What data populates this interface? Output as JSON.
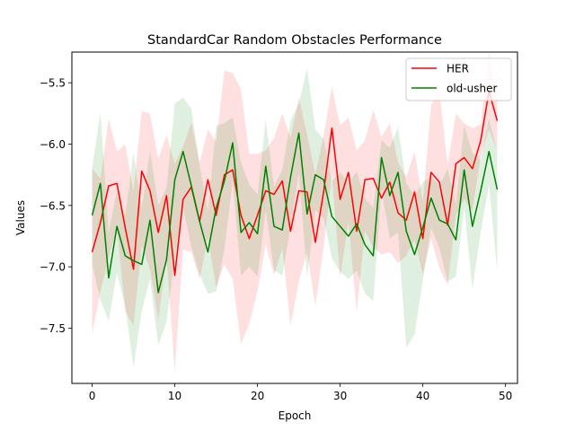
{
  "chart_data": {
    "type": "line",
    "title": "StandardCar Random Obstacles Performance",
    "xlabel": "Epoch",
    "ylabel": "Values",
    "xlim": [
      -2.45,
      51.45
    ],
    "ylim": [
      -7.95,
      -5.25
    ],
    "xticks": [
      0,
      10,
      20,
      30,
      40,
      50
    ],
    "xtick_labels": [
      "0",
      "10",
      "20",
      "30",
      "40",
      "50"
    ],
    "yticks": [
      -7.5,
      -7.0,
      -6.5,
      -6.0,
      -5.5
    ],
    "ytick_labels": [
      "−7.5",
      "−7.0",
      "−6.5",
      "−6.0",
      "−5.5"
    ],
    "grid": false,
    "legend_position": "top-right",
    "series": [
      {
        "name": "HER",
        "color": "#ff0000",
        "x": [
          0,
          1,
          2,
          3,
          4,
          5,
          6,
          7,
          8,
          9,
          10,
          11,
          12,
          13,
          14,
          15,
          16,
          17,
          18,
          19,
          20,
          21,
          22,
          23,
          24,
          25,
          26,
          27,
          28,
          29,
          30,
          31,
          32,
          33,
          34,
          35,
          36,
          37,
          38,
          39,
          40,
          41,
          42,
          43,
          44,
          45,
          46,
          47,
          48,
          49
        ],
        "values": [
          -6.88,
          -6.64,
          -6.34,
          -6.32,
          -6.68,
          -7.02,
          -6.22,
          -6.38,
          -6.72,
          -6.42,
          -7.07,
          -6.45,
          -6.35,
          -6.63,
          -6.29,
          -6.58,
          -6.25,
          -6.21,
          -6.58,
          -6.77,
          -6.58,
          -6.38,
          -6.41,
          -6.3,
          -6.71,
          -6.38,
          -6.39,
          -6.8,
          -6.39,
          -5.87,
          -6.45,
          -6.23,
          -6.71,
          -6.29,
          -6.28,
          -6.44,
          -6.31,
          -6.56,
          -6.62,
          -6.39,
          -6.77,
          -6.23,
          -6.31,
          -6.66,
          -6.16,
          -6.11,
          -6.2,
          -5.97,
          -5.57,
          -5.81
        ],
        "upper": [
          -6.2,
          -6.28,
          -5.79,
          -6.06,
          -6.0,
          -6.38,
          -5.73,
          -5.75,
          -6.12,
          -5.93,
          -6.16,
          -6.02,
          -5.82,
          -6.15,
          -5.88,
          -5.98,
          -5.4,
          -5.42,
          -5.55,
          -6.08,
          -6.08,
          -6.05,
          -5.95,
          -5.75,
          -5.95,
          -5.62,
          -5.92,
          -6.25,
          -5.93,
          -5.53,
          -5.85,
          -5.78,
          -6.05,
          -5.97,
          -5.72,
          -5.94,
          -5.83,
          -6.15,
          -6.27,
          -6.06,
          -6.47,
          -5.68,
          -5.57,
          -6.17,
          -5.75,
          -5.83,
          -5.87,
          -5.84,
          -5.26,
          -5.6
        ],
        "lower": [
          -7.55,
          -7.2,
          -6.93,
          -6.68,
          -7.36,
          -7.48,
          -6.83,
          -7.02,
          -7.43,
          -6.92,
          -7.85,
          -6.86,
          -6.88,
          -7.1,
          -6.76,
          -7.17,
          -6.98,
          -7.1,
          -7.63,
          -7.47,
          -7.2,
          -6.82,
          -7.07,
          -6.85,
          -7.48,
          -7.12,
          -6.88,
          -7.32,
          -6.84,
          -6.25,
          -7.09,
          -6.63,
          -7.37,
          -6.71,
          -6.84,
          -6.9,
          -6.88,
          -6.97,
          -6.91,
          -6.78,
          -7.06,
          -6.77,
          -7.01,
          -7.15,
          -6.58,
          -6.45,
          -6.54,
          -6.1,
          -5.88,
          -6.06
        ]
      },
      {
        "name": "old-usher",
        "color": "#008000",
        "x": [
          0,
          1,
          2,
          3,
          4,
          5,
          6,
          7,
          8,
          9,
          10,
          11,
          12,
          13,
          14,
          15,
          16,
          17,
          18,
          19,
          20,
          21,
          22,
          23,
          24,
          25,
          26,
          27,
          28,
          29,
          30,
          31,
          32,
          33,
          34,
          35,
          36,
          37,
          38,
          39,
          40,
          41,
          42,
          43,
          44,
          45,
          46,
          47,
          48,
          49
        ],
        "values": [
          -6.58,
          -6.32,
          -7.09,
          -6.67,
          -6.91,
          -6.95,
          -6.98,
          -6.62,
          -7.21,
          -6.94,
          -6.29,
          -6.06,
          -6.34,
          -6.63,
          -6.88,
          -6.52,
          -6.3,
          -5.99,
          -6.72,
          -6.64,
          -6.73,
          -6.18,
          -6.67,
          -6.7,
          -6.27,
          -5.91,
          -6.57,
          -6.25,
          -6.29,
          -6.59,
          -6.67,
          -6.75,
          -6.65,
          -6.82,
          -6.91,
          -6.11,
          -6.42,
          -6.23,
          -6.71,
          -6.9,
          -6.68,
          -6.44,
          -6.62,
          -6.65,
          -6.78,
          -6.21,
          -6.67,
          -6.38,
          -6.06,
          -6.37
        ],
        "upper": [
          -6.2,
          -5.74,
          -6.72,
          -6.38,
          -6.58,
          -6.07,
          -6.52,
          -6.05,
          -6.5,
          -6.35,
          -5.67,
          -5.62,
          -5.71,
          -6.17,
          -6.55,
          -5.85,
          -5.83,
          -5.78,
          -6.15,
          -6.33,
          -6.41,
          -5.8,
          -6.35,
          -6.21,
          -5.81,
          -5.67,
          -5.38,
          -5.88,
          -5.96,
          -6.3,
          -6.23,
          -6.32,
          -6.22,
          -6.44,
          -6.52,
          -5.97,
          -6.03,
          -5.86,
          -6.32,
          -6.42,
          -6.31,
          -6.26,
          -6.34,
          -6.2,
          -6.49,
          -5.85,
          -6.07,
          -6.13,
          -5.79,
          -6.07
        ],
        "lower": [
          -6.98,
          -7.27,
          -7.44,
          -7.05,
          -7.32,
          -7.82,
          -7.36,
          -7.1,
          -7.64,
          -7.45,
          -6.92,
          -6.52,
          -6.84,
          -7.06,
          -7.22,
          -7.2,
          -6.86,
          -6.3,
          -7.07,
          -7.0,
          -7.08,
          -6.54,
          -7.03,
          -7.07,
          -6.68,
          -6.24,
          -7.08,
          -6.54,
          -6.6,
          -6.93,
          -7.04,
          -7.1,
          -7.03,
          -7.22,
          -7.28,
          -6.37,
          -6.77,
          -6.72,
          -7.66,
          -7.55,
          -7.11,
          -6.68,
          -6.85,
          -7.12,
          -7.08,
          -6.52,
          -7.18,
          -6.72,
          -6.33,
          -7.04
        ]
      }
    ]
  }
}
